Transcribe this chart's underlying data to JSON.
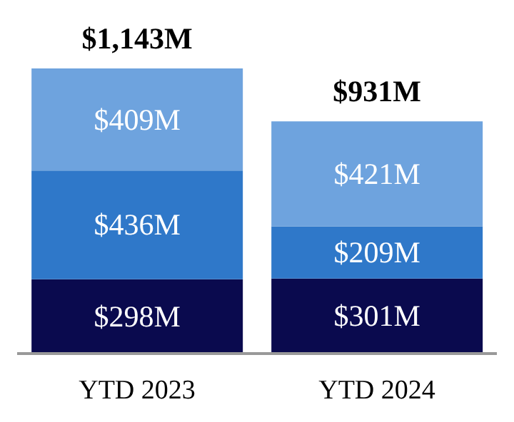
{
  "chart_data": {
    "type": "bar",
    "categories": [
      "YTD 2023",
      "YTD 2024"
    ],
    "stacked": true,
    "tick_labels": "x",
    "series": [
      {
        "color": "#0a0a4e",
        "values": [
          298,
          301
        ],
        "value_labels": [
          "$298M",
          "$301M"
        ]
      },
      {
        "color": "#2f78c9",
        "values": [
          436,
          209
        ],
        "value_labels": [
          "$436M",
          "$209M"
        ]
      },
      {
        "color": "#6ea3de",
        "values": [
          409,
          421
        ],
        "value_labels": [
          "$409M",
          "$421M"
        ]
      }
    ],
    "totals": [
      "$1,143M",
      "$931M"
    ]
  }
}
